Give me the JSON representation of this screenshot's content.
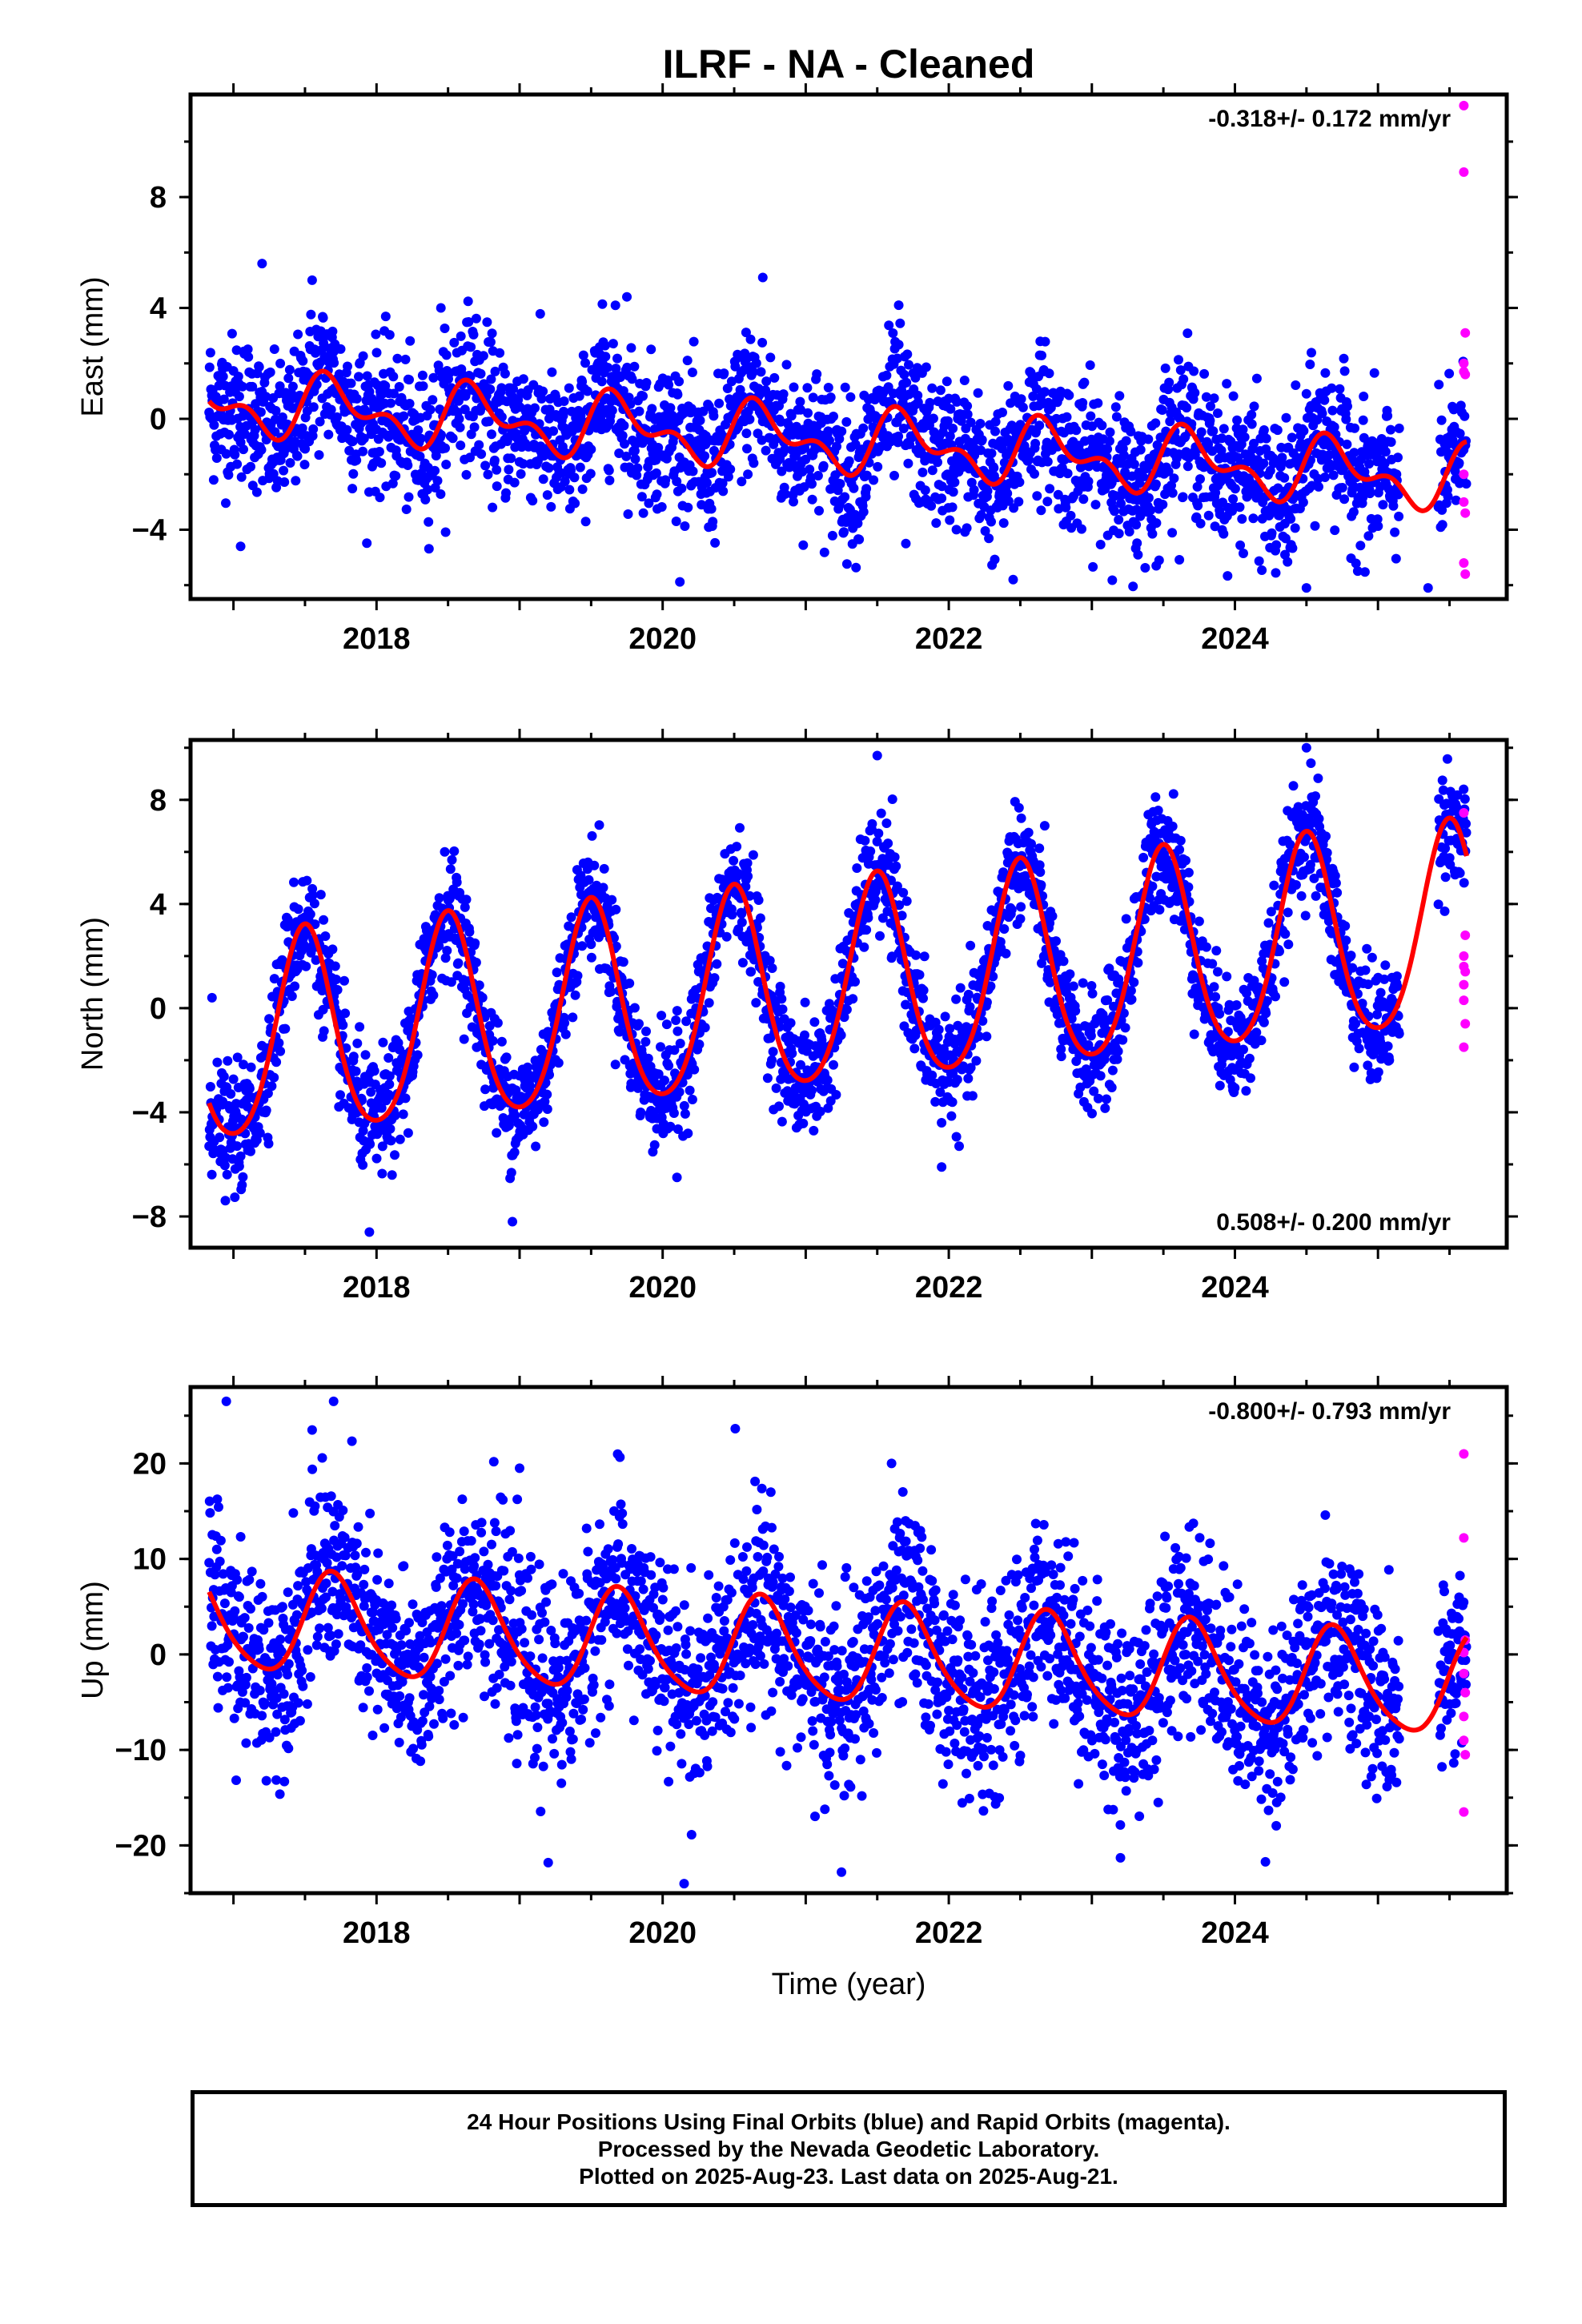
{
  "title": "ILRF  - NA - Cleaned",
  "caption": {
    "line1": "24 Hour Positions Using Final Orbits (blue) and Rapid Orbits (magenta).",
    "line2": "Processed by the Nevada Geodetic Laboratory.",
    "line3": "Plotted on 2025-Aug-23. Last data on 2025-Aug-21."
  },
  "xlabel": "Time (year)",
  "colors": {
    "final": "#0000ff",
    "rapid": "#ff00ff",
    "fit": "#ff0000",
    "frame": "#000000"
  },
  "chart_data": [
    {
      "type": "scatter",
      "component": "east",
      "ylabel": "East (mm)",
      "rate_label": "-0.318+/- 0.172 mm/yr",
      "xlim": [
        2016.7,
        2025.9
      ],
      "ylim": [
        -6.5,
        11.7
      ],
      "xticks": [
        2018,
        2020,
        2022,
        2024
      ],
      "yticks": [
        -4,
        0,
        4,
        8
      ],
      "model": {
        "start": 2016.83,
        "end": 2025.62,
        "offset": 0.6,
        "rate": -0.318,
        "annual_amp": 0.9,
        "annual_peak": 2017.7,
        "semi_amp": 0.6,
        "semi_phase": 0.2,
        "scatter_sd": 1.3
      },
      "outliers": [
        [
          2017.2,
          5.6
        ],
        [
          2017.55,
          5.0
        ],
        [
          2020.7,
          5.1
        ],
        [
          2019.75,
          4.4
        ],
        [
          2017.05,
          -4.6
        ],
        [
          2022.45,
          -5.8
        ],
        [
          2024.5,
          -6.1
        ],
        [
          2024.35,
          -4.9
        ],
        [
          2023.45,
          -5.3
        ],
        [
          2021.7,
          -4.5
        ],
        [
          2025.35,
          -6.1
        ],
        [
          2018.45,
          4.0
        ],
        [
          2021.65,
          4.1
        ]
      ],
      "rapid": [
        [
          2025.6,
          11.3
        ],
        [
          2025.6,
          8.9
        ],
        [
          2025.61,
          3.1
        ],
        [
          2025.6,
          2.0
        ],
        [
          2025.6,
          1.7
        ],
        [
          2025.61,
          1.6
        ],
        [
          2025.6,
          -2.0
        ],
        [
          2025.6,
          -3.0
        ],
        [
          2025.61,
          -3.4
        ],
        [
          2025.6,
          -5.2
        ],
        [
          2025.61,
          -5.6
        ]
      ]
    },
    {
      "type": "scatter",
      "component": "north",
      "ylabel": "North (mm)",
      "rate_label": "0.508+/- 0.200 mm/yr",
      "xlim": [
        2016.7,
        2025.9
      ],
      "ylim": [
        -9.2,
        10.3
      ],
      "xticks": [
        2018,
        2020,
        2022,
        2024
      ],
      "yticks": [
        -8,
        -4,
        0,
        4,
        8
      ],
      "model": {
        "start": 2016.83,
        "end": 2025.62,
        "offset": -1.5,
        "rate": 0.508,
        "annual_amp": 3.9,
        "annual_peak": 2017.5,
        "semi_amp": 0.5,
        "semi_phase": 0.0,
        "scatter_sd": 1.1
      },
      "outliers": [
        [
          2016.85,
          0.4
        ],
        [
          2017.95,
          -8.6
        ],
        [
          2021.5,
          9.7
        ],
        [
          2024.5,
          10.0
        ],
        [
          2018.95,
          -8.2
        ],
        [
          2020.1,
          -6.5
        ],
        [
          2021.95,
          -6.1
        ]
      ],
      "rapid": [
        [
          2025.6,
          7.5
        ],
        [
          2025.61,
          2.8
        ],
        [
          2025.6,
          2.0
        ],
        [
          2025.6,
          1.6
        ],
        [
          2025.61,
          1.4
        ],
        [
          2025.6,
          0.9
        ],
        [
          2025.6,
          0.3
        ],
        [
          2025.61,
          -0.6
        ],
        [
          2025.6,
          -1.5
        ]
      ]
    },
    {
      "type": "scatter",
      "component": "up",
      "ylabel": "Up (mm)",
      "rate_label": "-0.800+/- 0.793 mm/yr",
      "xlim": [
        2016.7,
        2025.9
      ],
      "ylim": [
        -25,
        28
      ],
      "xticks": [
        2018,
        2020,
        2022,
        2024
      ],
      "yticks": [
        -20,
        -10,
        0,
        10,
        20
      ],
      "model": {
        "start": 2016.83,
        "end": 2025.62,
        "offset": 3.5,
        "rate": -0.8,
        "annual_amp": 5.2,
        "annual_peak": 2017.7,
        "semi_amp": 0.8,
        "semi_phase": 0.1,
        "scatter_sd": 5.0
      },
      "outliers": [
        [
          2016.95,
          26.5
        ],
        [
          2017.7,
          26.5
        ],
        [
          2017.55,
          23.5
        ],
        [
          2020.15,
          -24.0
        ],
        [
          2021.25,
          -22.8
        ],
        [
          2023.2,
          -21.3
        ],
        [
          2019.2,
          -21.8
        ],
        [
          2021.6,
          20.0
        ],
        [
          2019.0,
          19.5
        ]
      ],
      "rapid": [
        [
          2025.6,
          21.0
        ],
        [
          2025.6,
          12.2
        ],
        [
          2025.61,
          1.5
        ],
        [
          2025.6,
          0.2
        ],
        [
          2025.6,
          -2.0
        ],
        [
          2025.61,
          -4.0
        ],
        [
          2025.6,
          -6.5
        ],
        [
          2025.6,
          -9.0
        ],
        [
          2025.61,
          -10.5
        ],
        [
          2025.6,
          -16.5
        ]
      ]
    }
  ]
}
